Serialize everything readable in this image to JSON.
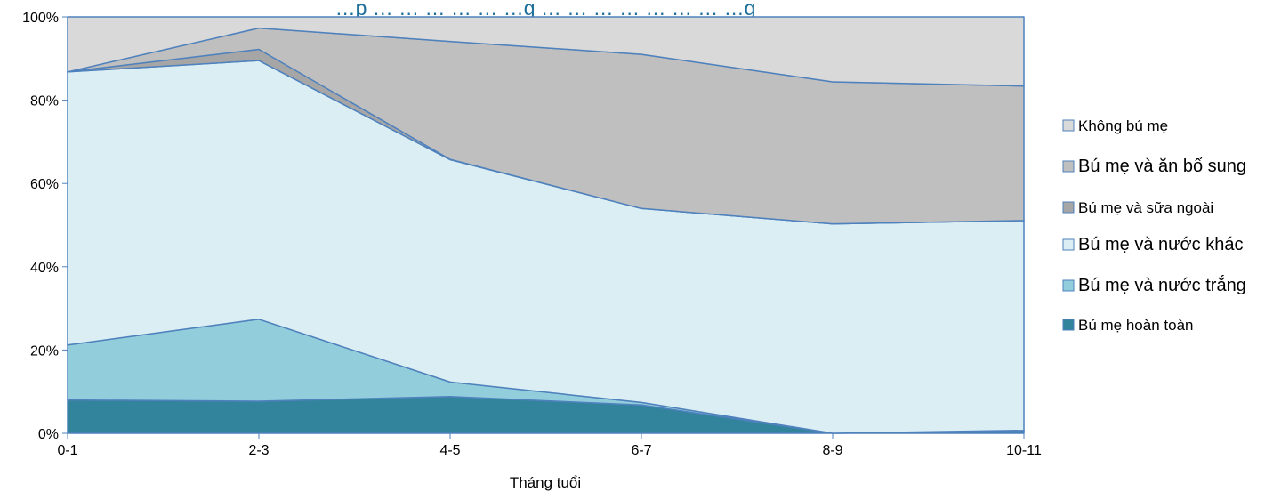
{
  "chart_data": {
    "type": "area",
    "stacked": true,
    "percent": true,
    "title": "…p … … … … … …g … … … … … … … …g",
    "xlabel": "Tháng tuổi",
    "ylabel": "",
    "categories": [
      "0-1",
      "2-3",
      "4-5",
      "6-7",
      "8-9",
      "10-11"
    ],
    "ylim": [
      0,
      100
    ],
    "yticks": [
      "0%",
      "20%",
      "40%",
      "60%",
      "80%",
      "100%"
    ],
    "grid": false,
    "legend_position": "right",
    "series": [
      {
        "name": "Bú mẹ hoàn toàn",
        "values": [
          8,
          7.7,
          8.8,
          6.8,
          0,
          0.5
        ],
        "color": "#31849b"
      },
      {
        "name": "Bú mẹ và nước trắng",
        "values": [
          13.2,
          19.7,
          3.5,
          0.6,
          0,
          0.2
        ],
        "color": "#92cddc"
      },
      {
        "name": "Bú mẹ và nước khác",
        "values": [
          65.6,
          62.1,
          53.4,
          46.6,
          50.3,
          50.4
        ],
        "color": "#daeef3"
      },
      {
        "name": "Bú mẹ và sữa ngoài",
        "values": [
          0,
          2.7,
          0.1,
          0,
          0,
          0
        ],
        "color": "#a6a6a6"
      },
      {
        "name": "Bú mẹ và ăn bổ sung",
        "values": [
          0,
          5.1,
          28.3,
          37,
          34.1,
          32.3
        ],
        "color": "#bfbfbf"
      },
      {
        "name": "Không bú mẹ",
        "values": [
          13.2,
          2.7,
          5.9,
          9,
          15.6,
          16.6
        ],
        "color": "#d9d9d9"
      }
    ],
    "line_color": "#4f81bd"
  }
}
